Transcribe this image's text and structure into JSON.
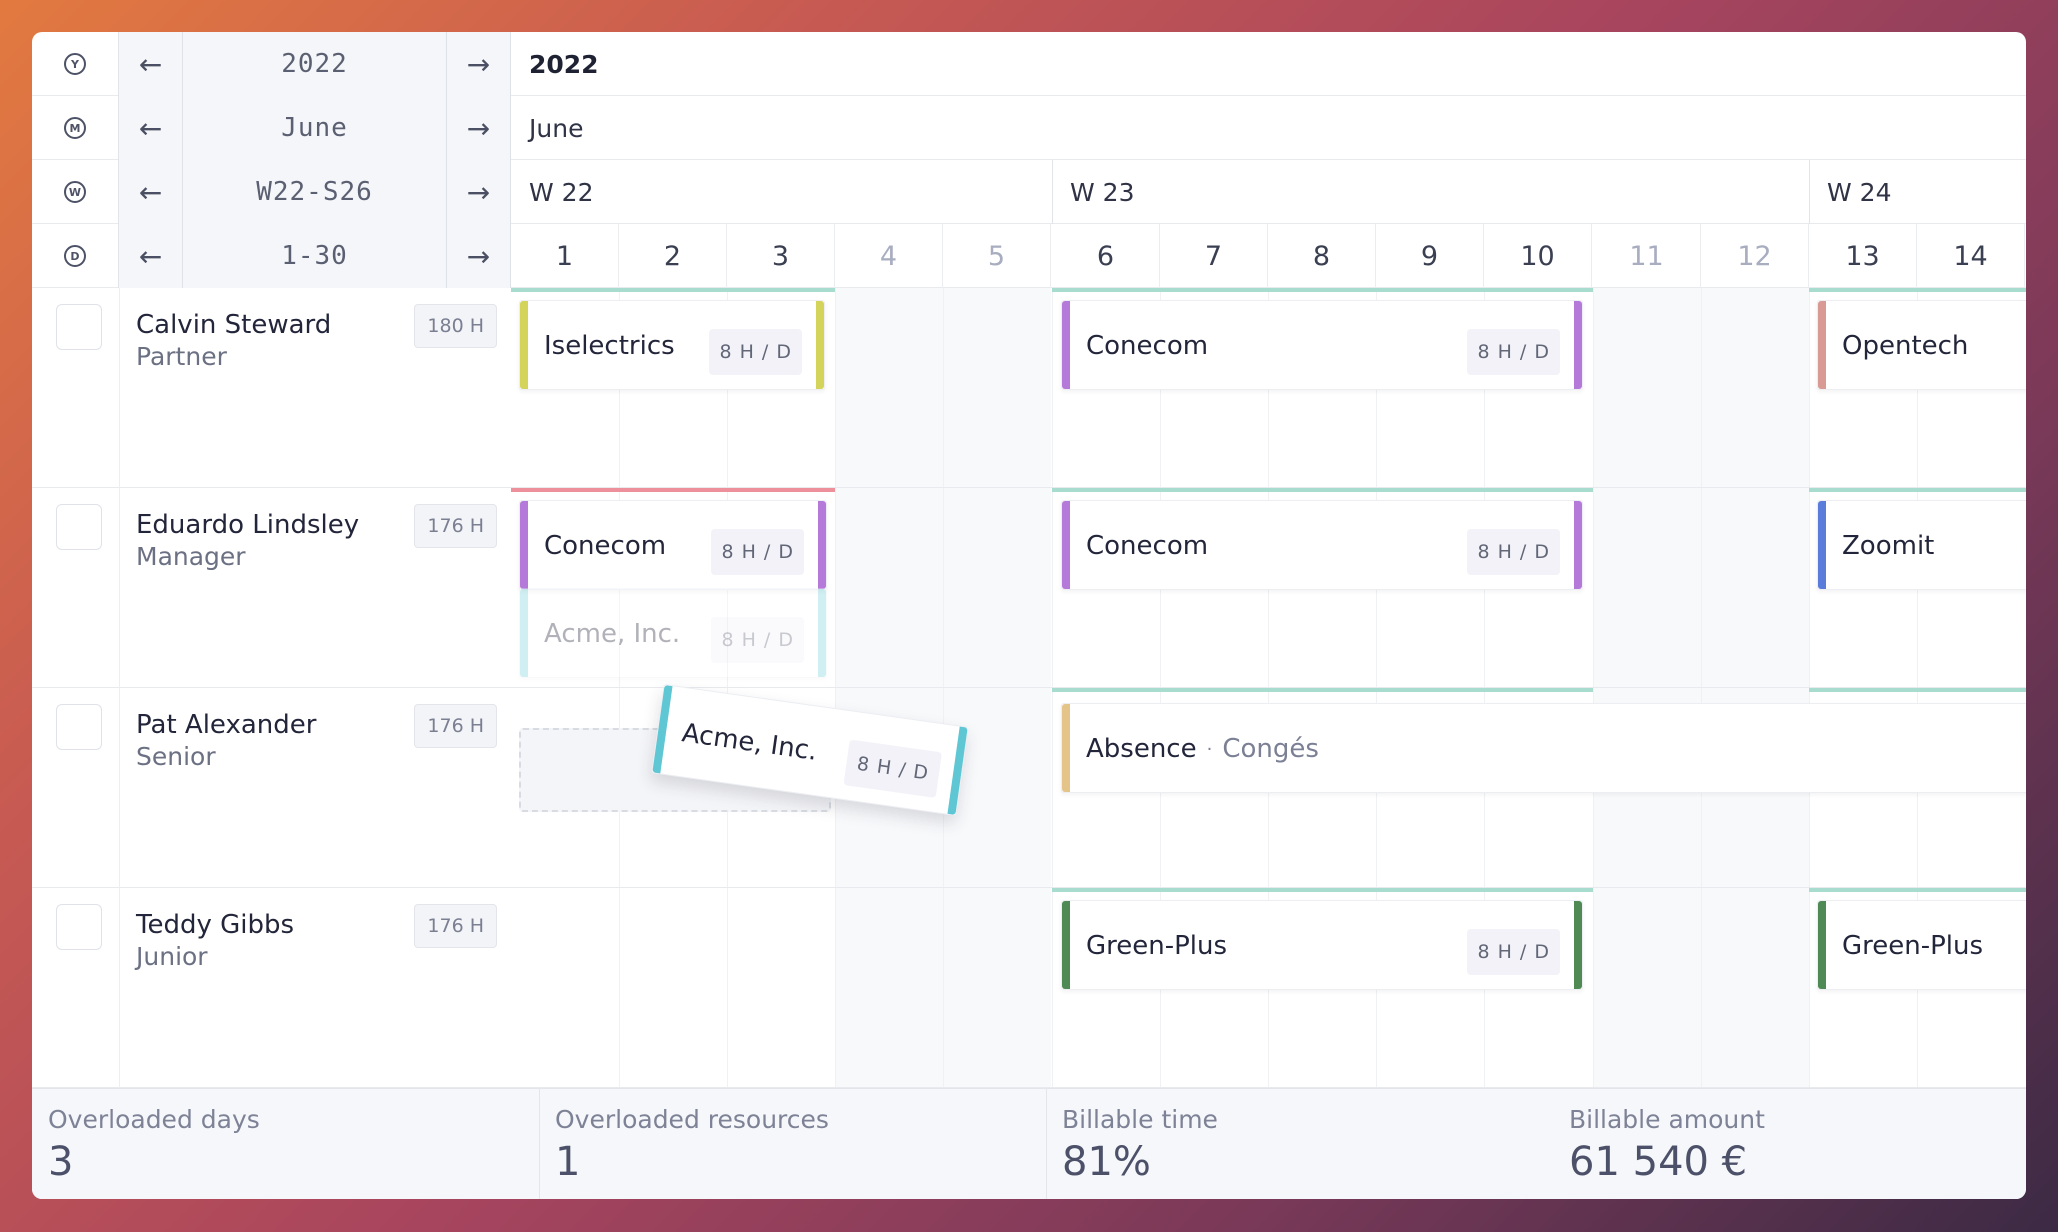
{
  "header": {
    "year": {
      "icon": "Y",
      "value": "2022",
      "label": "2022"
    },
    "month": {
      "icon": "M",
      "value": "June",
      "label": "June"
    },
    "week": {
      "icon": "W",
      "value": "W22-S26",
      "labels": [
        "W 22",
        "W 23",
        "W 24"
      ]
    },
    "day": {
      "icon": "D",
      "value": "1-30",
      "days": [
        "1",
        "2",
        "3",
        "4",
        "5",
        "6",
        "7",
        "8",
        "9",
        "10",
        "11",
        "12",
        "13",
        "14"
      ]
    },
    "prev_arrow": "←",
    "next_arrow": "→"
  },
  "resources": [
    {
      "name": "Calvin Steward",
      "role": "Partner",
      "hours": "180 H"
    },
    {
      "name": "Eduardo Lindsley",
      "role": "Manager",
      "hours": "176 H"
    },
    {
      "name": "Pat Alexander",
      "role": "Senior",
      "hours": "176 H"
    },
    {
      "name": "Teddy Gibbs",
      "role": "Junior",
      "hours": "176 H"
    }
  ],
  "tasks": {
    "calvin_1": {
      "name": "Iselectrics",
      "rate": "8 H / D",
      "color": "#d4d35a"
    },
    "calvin_2": {
      "name": "Conecom",
      "rate": "8 H / D",
      "color": "#b57ad9"
    },
    "calvin_3": {
      "name": "Opentech",
      "color": "#d99a96"
    },
    "eduardo_1": {
      "name": "Conecom",
      "rate": "8 H / D",
      "color": "#b57ad9"
    },
    "eduardo_ghost": {
      "name": "Acme, Inc.",
      "rate": "8 H / D",
      "color": "#7ad3dc"
    },
    "eduardo_2": {
      "name": "Conecom",
      "rate": "8 H / D",
      "color": "#b57ad9"
    },
    "eduardo_3": {
      "name": "Zoomit",
      "color": "#5a7ddb"
    },
    "drag": {
      "name": "Acme, Inc.",
      "rate": "8 H / D",
      "color": "#5fc6d4"
    },
    "pat_absence": {
      "name": "Absence",
      "separator": "·",
      "sub": "Congés",
      "color": "#e5c48a"
    },
    "teddy_1": {
      "name": "Green-Plus",
      "rate": "8 H / D",
      "color": "#4f8a55"
    },
    "teddy_2": {
      "name": "Green-Plus",
      "color": "#4f8a55"
    }
  },
  "footer": [
    {
      "label": "Overloaded days",
      "value": "3"
    },
    {
      "label": "Overloaded resources",
      "value": "1"
    },
    {
      "label": "Billable time",
      "value": "81%"
    },
    {
      "label": "Billable amount",
      "value": "61 540 €"
    }
  ]
}
